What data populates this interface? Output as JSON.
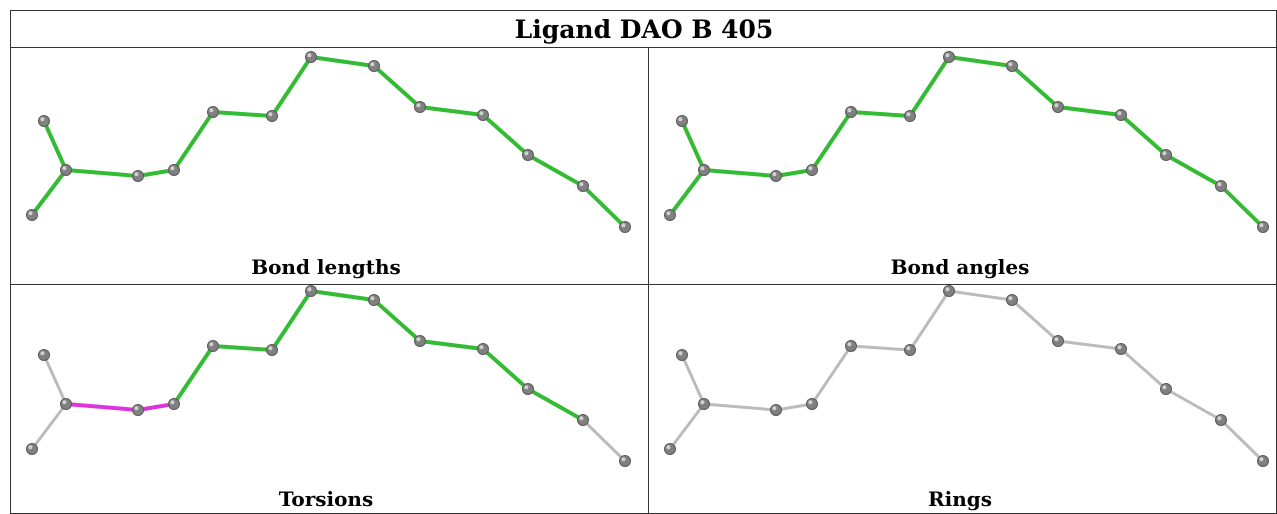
{
  "title": "Ligand DAO B 405",
  "colors": {
    "ok": "#33bb33",
    "outlier": "#dd33dd",
    "neutral": "#bbbbbb",
    "atom": "#808080"
  },
  "bonds": [
    [
      0,
      1
    ],
    [
      1,
      2
    ],
    [
      1,
      3
    ],
    [
      3,
      4
    ],
    [
      4,
      5
    ],
    [
      5,
      6
    ],
    [
      6,
      7
    ],
    [
      7,
      8
    ],
    [
      8,
      9
    ],
    [
      9,
      10
    ],
    [
      10,
      11
    ],
    [
      11,
      12
    ],
    [
      12,
      13
    ]
  ],
  "panels": [
    {
      "id": "bond-lengths",
      "caption": "Bond lengths",
      "bond_states": [
        "ok",
        "ok",
        "ok",
        "ok",
        "ok",
        "ok",
        "ok",
        "ok",
        "ok",
        "ok",
        "ok",
        "ok",
        "ok"
      ]
    },
    {
      "id": "bond-angles",
      "caption": "Bond angles",
      "bond_states": [
        "ok",
        "ok",
        "ok",
        "ok",
        "ok",
        "ok",
        "ok",
        "ok",
        "ok",
        "ok",
        "ok",
        "ok",
        "ok"
      ]
    },
    {
      "id": "torsions",
      "caption": "Torsions",
      "bond_states": [
        "neutral",
        "neutral",
        "outlier",
        "outlier",
        "ok",
        "ok",
        "ok",
        "ok",
        "ok",
        "ok",
        "ok",
        "ok",
        "neutral"
      ]
    },
    {
      "id": "rings",
      "caption": "Rings",
      "bond_states": [
        "neutral",
        "neutral",
        "neutral",
        "neutral",
        "neutral",
        "neutral",
        "neutral",
        "neutral",
        "neutral",
        "neutral",
        "neutral",
        "neutral",
        "neutral"
      ]
    }
  ]
}
